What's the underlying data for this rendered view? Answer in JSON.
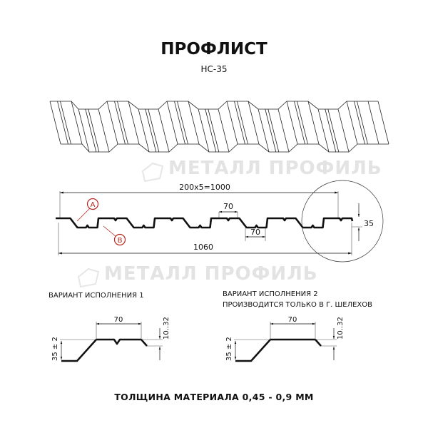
{
  "title": "ПРОФЛИСТ",
  "subtitle": "НС-35",
  "watermark": "МЕТАЛЛ ПРОФИЛЬ",
  "profile": {
    "pitch_dimension": "200x5=1000",
    "width_dimension": "1060",
    "crest_width": "70",
    "trough_width": "70",
    "height": "35",
    "marker_a": "A",
    "marker_b": "B"
  },
  "variants": [
    {
      "title": "ВАРИАНТ ИСПОЛНЕНИЯ 1",
      "note": "",
      "width": "70",
      "height": "35 ± 2",
      "edge": "10..32"
    },
    {
      "title": "ВАРИАНТ ИСПОЛНЕНИЯ 2",
      "note": "ПРОИЗВОДИТСЯ ТОЛЬКО В Г. ШЕЛЕХОВ",
      "width": "70",
      "height": "35 ± 2",
      "edge": "10..32"
    }
  ],
  "footer": "ТОЛЩИНА МАТЕРИАЛА 0,45 - 0,9 ММ",
  "colors": {
    "marker": "#b3261e",
    "line": "#111111",
    "watermark": "#e3e3e3"
  }
}
